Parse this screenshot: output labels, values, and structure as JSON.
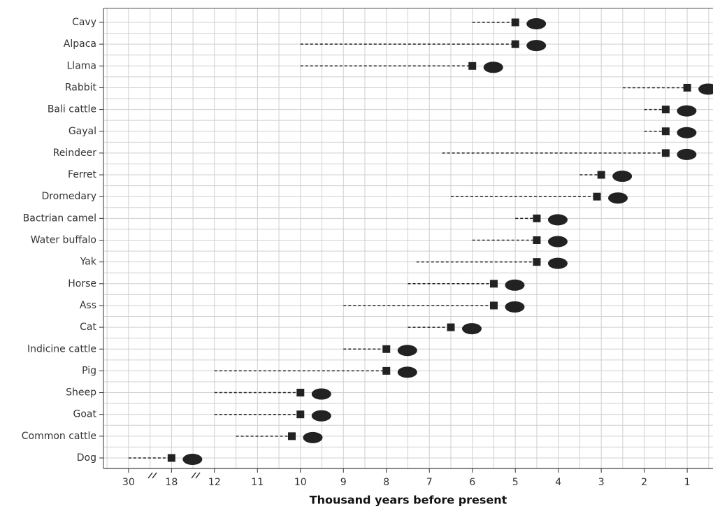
{
  "chart_data": {
    "type": "range-dot",
    "x_label": "Thousand years before present",
    "categories": [
      "Cavy",
      "Alpaca",
      "Llama",
      "Rabbit",
      "Bali cattle",
      "Gayal",
      "Reindeer",
      "Ferret",
      "Dromedary",
      "Bactrian camel",
      "Water buffalo",
      "Yak",
      "Horse",
      "Ass",
      "Cat",
      "Indicine cattle",
      "Pig",
      "Sheep",
      "Goat",
      "Common cattle",
      "Dog"
    ],
    "start": [
      6,
      10,
      10,
      2.5,
      2,
      2,
      6.7,
      3.5,
      6.5,
      5,
      6,
      7.3,
      7.5,
      9,
      7.5,
      9,
      12,
      12,
      12,
      11.5,
      30
    ],
    "values": [
      5,
      5,
      6,
      1,
      1.5,
      1.5,
      1.5,
      3,
      3.1,
      4.5,
      4.5,
      4.5,
      5.5,
      5.5,
      6.5,
      8,
      8,
      10,
      10,
      10.2,
      18
    ],
    "color": "#222222",
    "xlim": [
      37,
      0.4
    ],
    "xticks": [
      30,
      18,
      12,
      11,
      10,
      9,
      8,
      7,
      6,
      5,
      4,
      3,
      2,
      1
    ],
    "grid": true
  }
}
